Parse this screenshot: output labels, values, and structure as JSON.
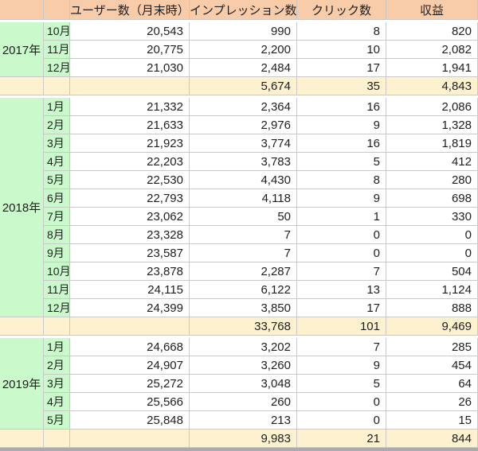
{
  "table": {
    "columns": {
      "users": "ユーザー数（月末時）",
      "impressions": "インプレッション数",
      "clicks": "クリック数",
      "revenue": "収益"
    },
    "groups": [
      {
        "year": "2017年",
        "rows": [
          {
            "month": "10月",
            "users": "20,543",
            "impressions": "990",
            "clicks": "8",
            "revenue": "820"
          },
          {
            "month": "11月",
            "users": "20,775",
            "impressions": "2,200",
            "clicks": "10",
            "revenue": "2,082"
          },
          {
            "month": "12月",
            "users": "21,030",
            "impressions": "2,484",
            "clicks": "17",
            "revenue": "1,941"
          }
        ],
        "subtotal": {
          "impressions": "5,674",
          "clicks": "35",
          "revenue": "4,843"
        }
      },
      {
        "year": "2018年",
        "rows": [
          {
            "month": "1月",
            "users": "21,332",
            "impressions": "2,364",
            "clicks": "16",
            "revenue": "2,086"
          },
          {
            "month": "2月",
            "users": "21,633",
            "impressions": "2,976",
            "clicks": "9",
            "revenue": "1,328"
          },
          {
            "month": "3月",
            "users": "21,923",
            "impressions": "3,774",
            "clicks": "16",
            "revenue": "1,819"
          },
          {
            "month": "4月",
            "users": "22,203",
            "impressions": "3,783",
            "clicks": "5",
            "revenue": "412"
          },
          {
            "month": "5月",
            "users": "22,530",
            "impressions": "4,430",
            "clicks": "8",
            "revenue": "280"
          },
          {
            "month": "6月",
            "users": "22,793",
            "impressions": "4,118",
            "clicks": "9",
            "revenue": "698"
          },
          {
            "month": "7月",
            "users": "23,062",
            "impressions": "50",
            "clicks": "1",
            "revenue": "330"
          },
          {
            "month": "8月",
            "users": "23,328",
            "impressions": "7",
            "clicks": "0",
            "revenue": "0"
          },
          {
            "month": "9月",
            "users": "23,587",
            "impressions": "7",
            "clicks": "0",
            "revenue": "0"
          },
          {
            "month": "10月",
            "users": "23,878",
            "impressions": "2,287",
            "clicks": "7",
            "revenue": "504"
          },
          {
            "month": "11月",
            "users": "24,115",
            "impressions": "6,122",
            "clicks": "13",
            "revenue": "1,124"
          },
          {
            "month": "12月",
            "users": "24,399",
            "impressions": "3,850",
            "clicks": "17",
            "revenue": "888"
          }
        ],
        "subtotal": {
          "impressions": "33,768",
          "clicks": "101",
          "revenue": "9,469"
        }
      },
      {
        "year": "2019年",
        "rows": [
          {
            "month": "1月",
            "users": "24,668",
            "impressions": "3,202",
            "clicks": "7",
            "revenue": "285"
          },
          {
            "month": "2月",
            "users": "24,907",
            "impressions": "3,260",
            "clicks": "9",
            "revenue": "454"
          },
          {
            "month": "3月",
            "users": "25,272",
            "impressions": "3,048",
            "clicks": "5",
            "revenue": "64"
          },
          {
            "month": "4月",
            "users": "25,566",
            "impressions": "260",
            "clicks": "0",
            "revenue": "26"
          },
          {
            "month": "5月",
            "users": "25,848",
            "impressions": "213",
            "clicks": "0",
            "revenue": "15"
          }
        ],
        "subtotal": {
          "impressions": "9,983",
          "clicks": "21",
          "revenue": "844"
        }
      }
    ]
  },
  "colors": {
    "header_bg": "#F8CBA9",
    "year_month_bg": "#CAFACC",
    "subtotal_bg": "#FDF1CF",
    "cell_border": "#C9C9C9",
    "bottom_edge": "#ABABAB",
    "text": "#1E1E1E"
  }
}
